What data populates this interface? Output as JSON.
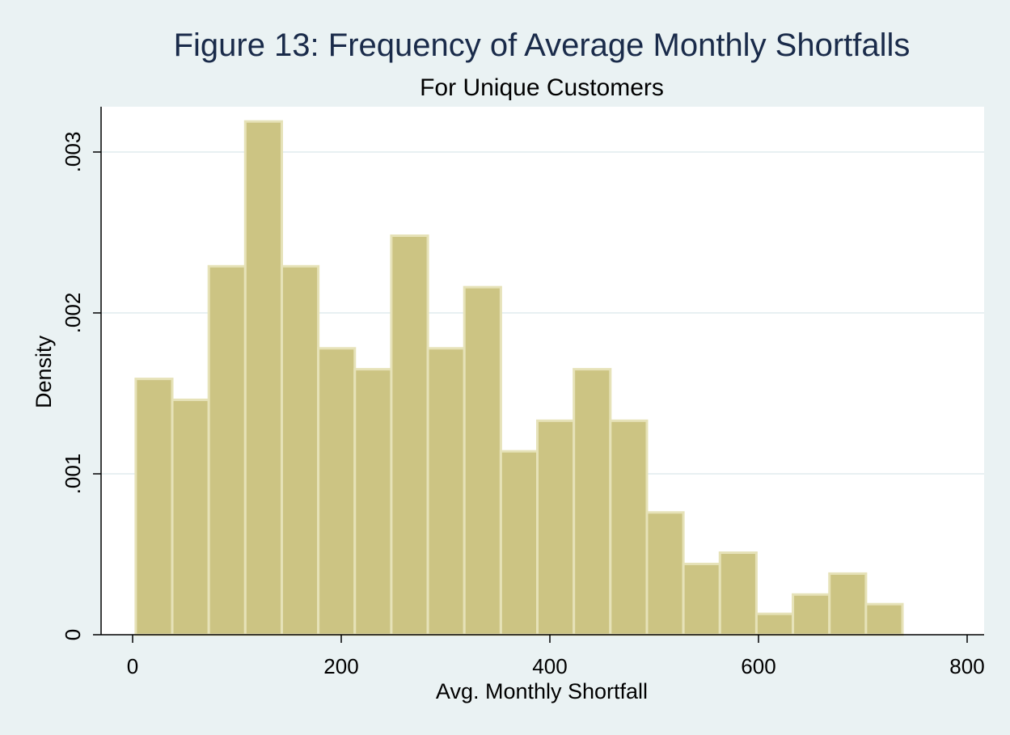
{
  "chart_data": {
    "type": "bar",
    "title": "Figure 13: Frequency of Average Monthly Shortfalls",
    "subtitle": "For Unique Customers",
    "xlabel": "Avg. Monthly Shortfall",
    "ylabel": "Density",
    "xlim": [
      0,
      800
    ],
    "ylim": [
      0,
      0.0033
    ],
    "x_ticks": [
      {
        "value": 0,
        "label": "0"
      },
      {
        "value": 200,
        "label": "200"
      },
      {
        "value": 400,
        "label": "400"
      },
      {
        "value": 600,
        "label": "600"
      },
      {
        "value": 800,
        "label": "800"
      }
    ],
    "y_ticks": [
      {
        "value": 0,
        "label": "0"
      },
      {
        "value": 0.001,
        "label": ".001"
      },
      {
        "value": 0.002,
        "label": ".002"
      },
      {
        "value": 0.003,
        "label": ".003"
      }
    ],
    "grid": true,
    "bin_edges": [
      3,
      38,
      73,
      108,
      143,
      178,
      213,
      248,
      283,
      318,
      353,
      388,
      423,
      458,
      493,
      528,
      563,
      598,
      633,
      668,
      703,
      738
    ],
    "values": [
      0.00159,
      0.00146,
      0.00229,
      0.00319,
      0.00229,
      0.00178,
      0.00165,
      0.00248,
      0.00178,
      0.00216,
      0.00114,
      0.00133,
      0.00165,
      0.00133,
      0.00076,
      0.00044,
      0.00051,
      0.00013,
      0.00025,
      0.00038,
      0.00019
    ],
    "colors": {
      "bar_fill": "#ccc483",
      "bar_edge": "#e6e2b8",
      "plot_bg": "#ffffff",
      "outer_bg": "#eaf2f3",
      "grid": "#e8f0f2",
      "title": "#1a2b4a"
    }
  }
}
